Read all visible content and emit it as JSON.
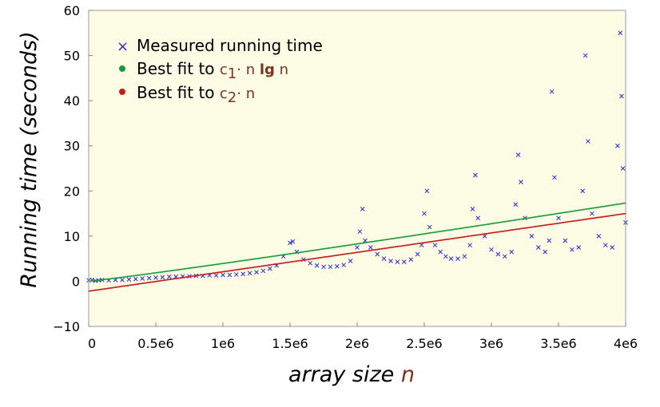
{
  "chart_data": {
    "type": "scatter",
    "xlabel_prefix": "array size ",
    "xlabel_var": "n",
    "ylabel": "Running time (seconds)",
    "xlim": [
      0,
      4000000
    ],
    "ylim": [
      -10,
      60
    ],
    "x_ticks": [
      0,
      500000,
      1000000,
      1500000,
      2000000,
      2500000,
      3000000,
      3500000,
      4000000
    ],
    "x_tick_labels": [
      "0",
      "0.5e6",
      "1e6",
      "1.5e6",
      "2e6",
      "2.5e6",
      "3e6",
      "3.5e6",
      "4e6"
    ],
    "y_ticks": [
      -10,
      0,
      10,
      20,
      30,
      40,
      50,
      60
    ],
    "y_tick_labels": [
      "−10",
      "0",
      "10",
      "20",
      "30",
      "40",
      "50",
      "60"
    ],
    "grid": false,
    "legend_position": "top-left",
    "background_color": "#fdfde6",
    "legend": {
      "measured": "Measured running time",
      "fit1_prefix": "Best fit to ",
      "fit1_c": "c",
      "fit1_sub": "1",
      "fit1_mid": "· n ",
      "fit1_lg": "lg",
      "fit1_end": " n",
      "fit2_prefix": "Best fit to ",
      "fit2_c": "c",
      "fit2_sub": "2",
      "fit2_end": "· n"
    },
    "series": [
      {
        "name": "Measured running time",
        "marker": "x",
        "color": "#2a2ad0",
        "points": [
          [
            0,
            0.2
          ],
          [
            25000,
            0.3
          ],
          [
            50000,
            0.1
          ],
          [
            75000,
            0.2
          ],
          [
            100000,
            0.3
          ],
          [
            150000,
            0.2
          ],
          [
            200000,
            0.3
          ],
          [
            250000,
            0.3
          ],
          [
            300000,
            0.4
          ],
          [
            350000,
            0.5
          ],
          [
            400000,
            0.6
          ],
          [
            450000,
            0.7
          ],
          [
            500000,
            0.8
          ],
          [
            550000,
            0.9
          ],
          [
            600000,
            1.0
          ],
          [
            650000,
            1.0
          ],
          [
            700000,
            1.1
          ],
          [
            750000,
            1.1
          ],
          [
            800000,
            1.2
          ],
          [
            850000,
            1.2
          ],
          [
            900000,
            1.3
          ],
          [
            950000,
            1.3
          ],
          [
            1000000,
            1.4
          ],
          [
            1050000,
            1.4
          ],
          [
            1100000,
            1.5
          ],
          [
            1150000,
            1.6
          ],
          [
            1200000,
            1.8
          ],
          [
            1250000,
            2.0
          ],
          [
            1300000,
            2.3
          ],
          [
            1350000,
            2.8
          ],
          [
            1400000,
            3.5
          ],
          [
            1450000,
            5.5
          ],
          [
            1500000,
            8.5
          ],
          [
            1520000,
            8.8
          ],
          [
            1550000,
            6.5
          ],
          [
            1600000,
            4.8
          ],
          [
            1650000,
            4.0
          ],
          [
            1700000,
            3.5
          ],
          [
            1750000,
            3.2
          ],
          [
            1800000,
            3.2
          ],
          [
            1850000,
            3.3
          ],
          [
            1900000,
            3.6
          ],
          [
            1950000,
            4.5
          ],
          [
            2000000,
            7.5
          ],
          [
            2020000,
            11.0
          ],
          [
            2040000,
            16.0
          ],
          [
            2060000,
            9.0
          ],
          [
            2100000,
            7.5
          ],
          [
            2150000,
            6.0
          ],
          [
            2200000,
            5.0
          ],
          [
            2250000,
            4.5
          ],
          [
            2300000,
            4.3
          ],
          [
            2350000,
            4.3
          ],
          [
            2400000,
            4.8
          ],
          [
            2450000,
            6.0
          ],
          [
            2480000,
            8.0
          ],
          [
            2500000,
            15.0
          ],
          [
            2520000,
            20.0
          ],
          [
            2540000,
            12.0
          ],
          [
            2580000,
            8.0
          ],
          [
            2620000,
            6.5
          ],
          [
            2660000,
            5.5
          ],
          [
            2700000,
            5.0
          ],
          [
            2750000,
            5.0
          ],
          [
            2800000,
            5.5
          ],
          [
            2840000,
            8.0
          ],
          [
            2860000,
            16.0
          ],
          [
            2880000,
            23.5
          ],
          [
            2900000,
            14.0
          ],
          [
            2950000,
            10.0
          ],
          [
            3000000,
            7.0
          ],
          [
            3050000,
            6.0
          ],
          [
            3100000,
            5.5
          ],
          [
            3150000,
            6.5
          ],
          [
            3180000,
            17.0
          ],
          [
            3200000,
            28.0
          ],
          [
            3220000,
            22.0
          ],
          [
            3250000,
            14.0
          ],
          [
            3300000,
            10.0
          ],
          [
            3350000,
            7.5
          ],
          [
            3400000,
            6.5
          ],
          [
            3430000,
            9.0
          ],
          [
            3450000,
            42.0
          ],
          [
            3470000,
            23.0
          ],
          [
            3500000,
            14.0
          ],
          [
            3550000,
            9.0
          ],
          [
            3600000,
            7.0
          ],
          [
            3650000,
            7.5
          ],
          [
            3680000,
            20.0
          ],
          [
            3700000,
            50.0
          ],
          [
            3720000,
            31.0
          ],
          [
            3750000,
            15.0
          ],
          [
            3800000,
            10.0
          ],
          [
            3850000,
            8.0
          ],
          [
            3900000,
            7.5
          ],
          [
            3940000,
            30.0
          ],
          [
            3960000,
            55.0
          ],
          [
            3970000,
            41.0
          ],
          [
            3980000,
            25.0
          ],
          [
            4000000,
            13.0
          ]
        ]
      },
      {
        "name": "Best fit to c₁· n lg n",
        "marker": "dot",
        "color": "#1a9a3a",
        "c": 1.975e-07,
        "intercept": 0.0
      },
      {
        "name": "Best fit to c₂· n",
        "marker": "dot",
        "color": "#c41a1a",
        "slope": 4.3e-06,
        "intercept": -2.2
      }
    ]
  }
}
